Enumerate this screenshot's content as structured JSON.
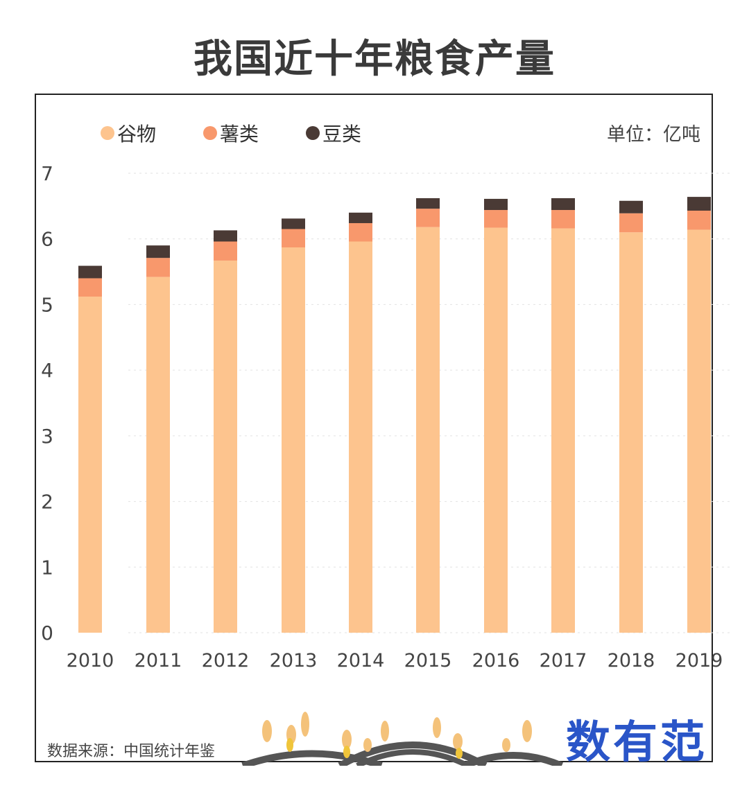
{
  "title": "我国近十年粮食产量",
  "unit_label": "单位：亿吨",
  "source_label": "数据来源：中国统计年鉴",
  "logo_text": "数有范",
  "colors": {
    "cereal": "#fdc48e",
    "tuber": "#f8986c",
    "bean": "#4a3a35",
    "grid": "#e2e2e2",
    "axis_text": "#444444"
  },
  "chart_data": {
    "type": "bar",
    "stacked": true,
    "categories": [
      "2010",
      "2011",
      "2012",
      "2013",
      "2014",
      "2015",
      "2016",
      "2017",
      "2018",
      "2019"
    ],
    "series": [
      {
        "name": "谷物",
        "values": [
          5.12,
          5.42,
          5.67,
          5.87,
          5.96,
          6.18,
          6.17,
          6.16,
          6.1,
          6.14
        ]
      },
      {
        "name": "薯类",
        "values": [
          0.28,
          0.29,
          0.29,
          0.28,
          0.28,
          0.28,
          0.27,
          0.28,
          0.29,
          0.29
        ]
      },
      {
        "name": "豆类",
        "values": [
          0.19,
          0.19,
          0.17,
          0.16,
          0.16,
          0.16,
          0.17,
          0.18,
          0.19,
          0.21
        ]
      }
    ],
    "yticks": [
      0,
      1,
      2,
      3,
      4,
      5,
      6,
      7
    ],
    "ylim": [
      0,
      7
    ],
    "grid": true,
    "legend_position": "top-left"
  }
}
